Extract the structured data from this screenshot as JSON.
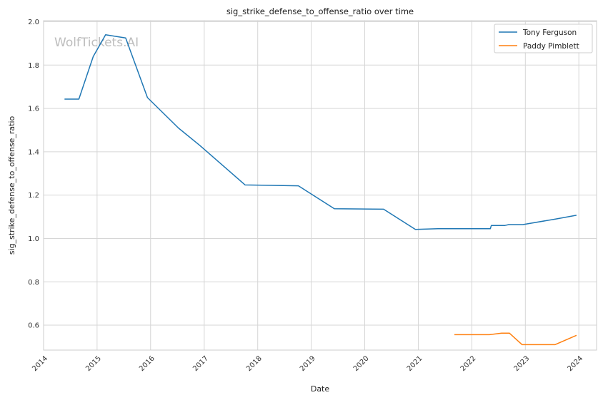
{
  "chart_data": {
    "type": "line",
    "title": "sig_strike_defense_to_offense_ratio over time",
    "xlabel": "Date",
    "ylabel": "sig_strike_defense_to_offense_ratio",
    "watermark": "WolfTickets.AI",
    "x_range": [
      "2014-01-01",
      "2024-05-01"
    ],
    "x_ticks": [
      "2014",
      "2015",
      "2016",
      "2017",
      "2018",
      "2019",
      "2020",
      "2021",
      "2022",
      "2023",
      "2024"
    ],
    "ylim": [
      0.485,
      2.005
    ],
    "y_ticks": [
      "0.6",
      "0.8",
      "1.0",
      "1.2",
      "1.4",
      "1.6",
      "1.8",
      "2.0"
    ],
    "grid": true,
    "legend_position": "top-right",
    "series": [
      {
        "name": "Tony Ferguson",
        "color": "#1f77b4",
        "points": [
          [
            "2014-05-24",
            1.643
          ],
          [
            "2014-08-30",
            1.643
          ],
          [
            "2014-12-06",
            1.84
          ],
          [
            "2015-02-28",
            1.94
          ],
          [
            "2015-07-15",
            1.925
          ],
          [
            "2015-12-11",
            1.65
          ],
          [
            "2016-07-09",
            1.51
          ],
          [
            "2016-12-01",
            1.43
          ],
          [
            "2017-10-07",
            1.247
          ],
          [
            "2018-10-06",
            1.243
          ],
          [
            "2019-06-08",
            1.137
          ],
          [
            "2020-05-09",
            1.135
          ],
          [
            "2020-12-12",
            1.042
          ],
          [
            "2021-05-15",
            1.045
          ],
          [
            "2022-05-07",
            1.045
          ],
          [
            "2022-05-14",
            1.06
          ],
          [
            "2022-08-15",
            1.06
          ],
          [
            "2022-09-10",
            1.064
          ],
          [
            "2022-12-15",
            1.064
          ],
          [
            "2023-07-29",
            1.09
          ],
          [
            "2023-12-16",
            1.107
          ]
        ]
      },
      {
        "name": "Paddy Pimblett",
        "color": "#ff7f0e",
        "points": [
          [
            "2021-09-04",
            0.556
          ],
          [
            "2022-03-19",
            0.556
          ],
          [
            "2022-05-01",
            0.556
          ],
          [
            "2022-07-23",
            0.563
          ],
          [
            "2022-09-15",
            0.563
          ],
          [
            "2022-12-10",
            0.51
          ],
          [
            "2023-07-22",
            0.51
          ],
          [
            "2023-12-16",
            0.553
          ]
        ]
      }
    ]
  }
}
